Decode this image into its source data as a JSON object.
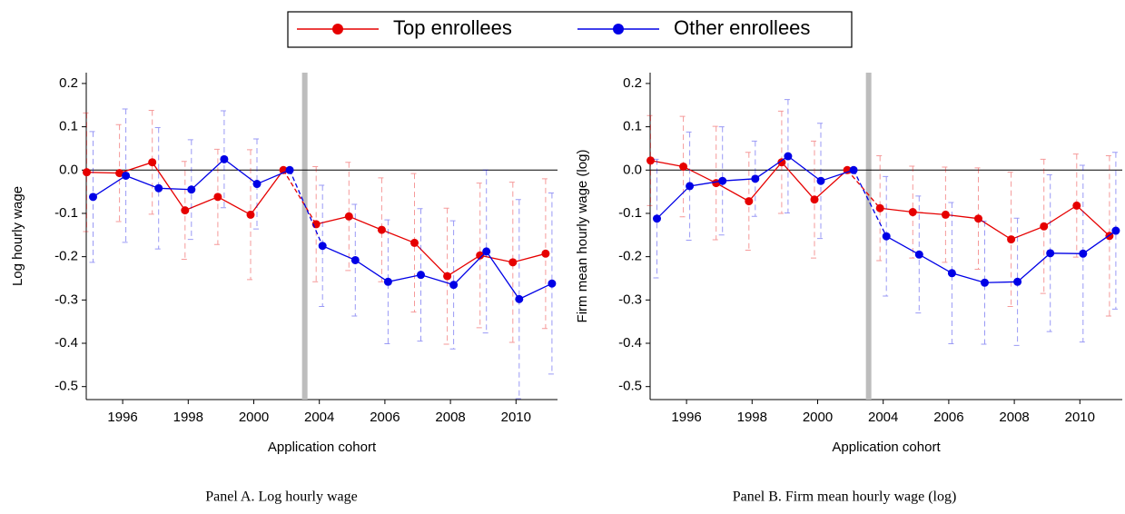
{
  "chart_data": [
    {
      "type": "line",
      "caption": "Panel A. Log hourly wage",
      "x_label": "Application cohort",
      "y_label": "Log hourly wage",
      "categories": [
        null,
        "1996",
        null,
        "1998",
        null,
        "2000",
        null,
        "2004",
        null,
        "2006",
        null,
        "2008",
        null,
        "2010",
        null
      ],
      "series": [
        {
          "name": "Top enrollees",
          "color": "#e60000",
          "values": [
            -0.005,
            -0.007,
            0.018,
            -0.093,
            -0.062,
            -0.103,
            0,
            -0.125,
            -0.107,
            -0.138,
            -0.168,
            -0.245,
            -0.197,
            -0.213,
            -0.193
          ],
          "errors": [
            0.137,
            0.112,
            0.12,
            0.113,
            0.11,
            0.15,
            0,
            0.133,
            0.125,
            0.12,
            0.16,
            0.157,
            0.167,
            0.185,
            0.173
          ]
        },
        {
          "name": "Other enrollees",
          "color": "#0000e6",
          "values": [
            -0.062,
            -0.013,
            -0.042,
            -0.045,
            0.025,
            -0.032,
            0,
            -0.175,
            -0.208,
            -0.258,
            -0.242,
            -0.265,
            -0.188,
            -0.298,
            -0.262
          ],
          "errors": [
            0.151,
            0.154,
            0.14,
            0.115,
            0.112,
            0.104,
            0,
            0.14,
            0.129,
            0.143,
            0.153,
            0.148,
            0.188,
            0.23,
            0.209
          ]
        }
      ],
      "ylim": [
        -0.53,
        0.225
      ],
      "yticks": [
        0.2,
        0.1,
        {
          "value": 0,
          "label": "0.0"
        },
        -0.1,
        -0.2,
        -0.3,
        -0.4,
        -0.5
      ],
      "hline": 0
    },
    {
      "type": "line",
      "caption": "Panel B. Firm mean hourly wage (log)",
      "x_label": "Application cohort",
      "y_label": "Firm mean hourly wage (log)",
      "categories": [
        null,
        "1996",
        null,
        "1998",
        null,
        "2000",
        null,
        "2004",
        null,
        "2006",
        null,
        "2008",
        null,
        "2010",
        null
      ],
      "series": [
        {
          "color": "#e60000",
          "values": [
            0.022,
            0.008,
            -0.03,
            -0.072,
            0.018,
            -0.068,
            0,
            -0.088,
            -0.097,
            -0.103,
            -0.112,
            -0.16,
            -0.13,
            -0.082,
            -0.152
          ],
          "errors": [
            0.104,
            0.116,
            0.131,
            0.113,
            0.118,
            0.135,
            0,
            0.121,
            0.106,
            0.11,
            0.117,
            0.155,
            0.155,
            0.119,
            0.185
          ]
        },
        {
          "color": "#0000e6",
          "values": [
            -0.112,
            -0.037,
            -0.025,
            -0.02,
            0.032,
            -0.025,
            0,
            -0.153,
            -0.195,
            -0.238,
            -0.26,
            -0.258,
            -0.192,
            -0.193,
            -0.14
          ],
          "errors": [
            0.137,
            0.125,
            0.125,
            0.087,
            0.131,
            0.133,
            0,
            0.138,
            0.135,
            0.163,
            0.142,
            0.147,
            0.181,
            0.204,
            0.181
          ]
        }
      ],
      "ylim": [
        -0.53,
        0.225
      ],
      "yticks": [
        0.2,
        0.1,
        {
          "value": 0,
          "label": "0.0"
        },
        -0.1,
        -0.2,
        -0.3,
        -0.4,
        -0.5
      ],
      "hline": 0
    }
  ]
}
